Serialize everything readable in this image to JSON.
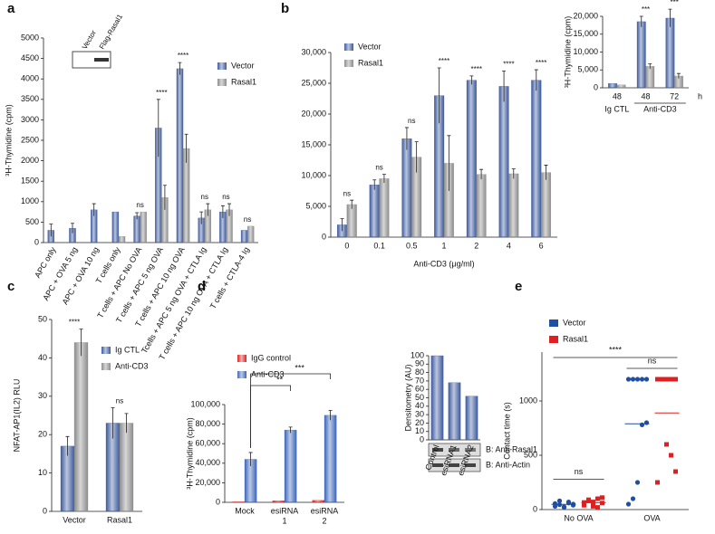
{
  "chart_data": [
    {
      "type": "bar",
      "panel": "a",
      "ylabel": "³H-Thymidine (cpm)",
      "inset_labels": [
        "Vector",
        "Flag-Rasal1"
      ],
      "categories": [
        "APC only",
        "APC + OVA 5 ng",
        "APC + OVA 10 ng",
        "T cells only",
        "T cells + APC No OVA",
        "T cells + APC 5 ng OVA",
        "T cells + APC 10 ng OVA",
        "Tcells + APC 5 ng OVA + CTLA Ig",
        "T cells + APC 10 ng OVA + CTLA Ig",
        "T cells + CTLA-4 Ig"
      ],
      "series": [
        {
          "name": "Vector",
          "color": "#3d5a9e",
          "values": [
            300,
            350,
            800,
            750,
            650,
            2800,
            4250,
            600,
            750,
            300
          ],
          "errors": [
            150,
            120,
            150,
            null,
            80,
            700,
            150,
            150,
            150,
            null
          ]
        },
        {
          "name": "Rasal1",
          "color": "#8c8c8c",
          "values": [
            null,
            null,
            null,
            150,
            750,
            1100,
            2300,
            800,
            800,
            400
          ],
          "errors": [
            null,
            null,
            null,
            null,
            null,
            300,
            350,
            150,
            150,
            null
          ]
        }
      ],
      "annotations": [
        null,
        null,
        null,
        null,
        "ns",
        "****",
        "****",
        "ns",
        "ns",
        "ns"
      ],
      "ylim": [
        0,
        5000
      ],
      "yticks": [
        0,
        500,
        1000,
        1500,
        2000,
        2500,
        3000,
        3500,
        4000,
        4500,
        5000
      ]
    },
    {
      "type": "bar",
      "panel": "b",
      "xlabel": "Anti-CD3 (μg/ml)",
      "categories": [
        "0",
        "0.1",
        "0.5",
        "1",
        "2",
        "4",
        "6"
      ],
      "series": [
        {
          "name": "Vector",
          "color": "#3d5a9e",
          "values": [
            2000,
            8500,
            16000,
            23000,
            25500,
            24500,
            25500
          ],
          "errors": [
            1000,
            800,
            1800,
            4500,
            700,
            2500,
            1700
          ]
        },
        {
          "name": "Rasal1",
          "color": "#8c8c8c",
          "values": [
            5300,
            9500,
            13000,
            12000,
            10200,
            10300,
            10500
          ],
          "errors": [
            700,
            700,
            2500,
            4500,
            800,
            800,
            1200
          ]
        }
      ],
      "annotations": [
        "ns",
        "ns",
        "ns",
        "****",
        "****",
        "****",
        "****"
      ],
      "ylim": [
        0,
        30000
      ],
      "yticks": [
        0,
        {
          "value": 5000,
          "label": "5,000"
        },
        {
          "value": 10000,
          "label": "10,000"
        },
        {
          "value": 15000,
          "label": "15,000"
        },
        {
          "value": 20000,
          "label": "20,000"
        },
        {
          "value": 25000,
          "label": "25,000"
        },
        {
          "value": 30000,
          "label": "30,000"
        }
      ]
    },
    {
      "type": "bar",
      "ylabel": "³H-Thymidine (cpm)",
      "unit": "h",
      "groups": [
        "Ig CTL",
        "Anti-CD3"
      ],
      "categories": [
        "48",
        "48",
        "72"
      ],
      "series": [
        {
          "color": "#3d5a9e",
          "values": [
            1200,
            18500,
            19500
          ],
          "errors": [
            null,
            1500,
            2500
          ]
        },
        {
          "color": "#8c8c8c",
          "values": [
            800,
            6000,
            3300
          ],
          "errors": [
            null,
            700,
            700
          ]
        }
      ],
      "annotations": [
        null,
        "***",
        "***"
      ],
      "ylim": [
        0,
        20000
      ],
      "yticks": [
        0,
        {
          "value": 5000,
          "label": "5,000"
        },
        {
          "value": 10000,
          "label": "10,000"
        },
        {
          "value": 15000,
          "label": "15,000"
        },
        {
          "value": 20000,
          "label": "20,000"
        }
      ]
    },
    {
      "type": "bar",
      "panel": "c",
      "ylabel": "NFAT-AP1(IL2) RLU",
      "categories": [
        "Vector",
        "Rasal1"
      ],
      "series": [
        {
          "name": "Ig CTL",
          "color": "#3d5a9e",
          "values": [
            17,
            23
          ],
          "errors": [
            2.5,
            4
          ]
        },
        {
          "name": "Anti-CD3",
          "color": "#8c8c8c",
          "values": [
            44,
            23
          ],
          "errors": [
            3.5,
            2.5
          ]
        }
      ],
      "annotations": [
        "****",
        "ns"
      ],
      "ylim": [
        0,
        50
      ],
      "yticks": [
        0,
        10,
        20,
        30,
        40,
        50
      ]
    },
    {
      "type": "bar",
      "panel": "d",
      "ylabel": "³H-Thymidine (cpm)",
      "categories": [
        [
          "Mock"
        ],
        [
          "esiRNA",
          "1"
        ],
        [
          "esiRNA",
          "2"
        ]
      ],
      "series": [
        {
          "name": "IgG control",
          "color": "#e02020",
          "values": [
            500,
            1500,
            2000
          ],
          "errors": [
            null,
            null,
            null
          ]
        },
        {
          "name": "Anti-CD3",
          "color": "#3d66b8",
          "values": [
            44000,
            74000,
            89000
          ],
          "errors": [
            7000,
            3000,
            5000
          ]
        }
      ],
      "annotations": [
        "**",
        "***"
      ],
      "ylim": [
        0,
        100000
      ],
      "yticks": [
        0,
        {
          "value": 20000,
          "label": "20,000"
        },
        {
          "value": 40000,
          "label": "40,000"
        },
        {
          "value": 60000,
          "label": "60,000"
        },
        {
          "value": 80000,
          "label": "80,000"
        },
        {
          "value": 100000,
          "label": "100,000"
        }
      ]
    },
    {
      "type": "bar",
      "ylabel": "Densitometry (AU)",
      "blot_labels": [
        "B: Anti-Rasal1",
        "B: Anti-Actin"
      ],
      "categories": [
        "Control",
        "esiRNA1",
        "esiRNA2"
      ],
      "series": [
        {
          "color": "#3d5a9e",
          "values": [
            100,
            68,
            52
          ]
        }
      ],
      "ylim": [
        0,
        100
      ],
      "yticks": [
        0,
        10,
        20,
        30,
        40,
        50,
        60,
        70,
        80,
        90,
        100
      ]
    },
    {
      "type": "strip",
      "panel": "e",
      "ylabel": "Contact time (s)",
      "categories": [
        "No OVA",
        "OVA"
      ],
      "series": [
        {
          "name": "Vector",
          "color": "#1f4fa0",
          "groups": [
            [
              40,
              60,
              20,
              80,
              30,
              50,
              70,
              25,
              45,
              55
            ],
            [
              1200,
              1200,
              1200,
              1200,
              1200,
              800,
              780,
              250,
              100,
              50
            ]
          ],
          "means": [
            48,
            790
          ]
        },
        {
          "name": "Rasal1",
          "color": "#e02020",
          "groups": [
            [
              50,
              80,
              30,
              100,
              60,
              40,
              90,
              70,
              20,
              110,
              65
            ],
            [
              1200,
              1200,
              1200,
              1200,
              1200,
              1200,
              1200,
              600,
              500,
              350,
              250
            ]
          ],
          "means": [
            64,
            890
          ]
        }
      ],
      "annotations": [
        "ns",
        "ns",
        "****"
      ],
      "ylim": [
        0,
        1450
      ],
      "yticks": [
        0,
        500,
        1000
      ]
    }
  ]
}
